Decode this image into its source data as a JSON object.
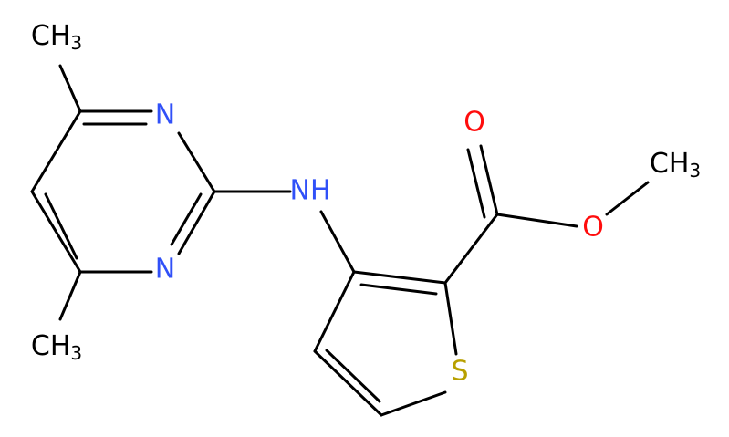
{
  "atoms": [
    {
      "label": "CH",
      "sub": "3"
    },
    {
      "label": "N"
    },
    {
      "label": "N"
    },
    {
      "label": "CH",
      "sub": "3"
    },
    {
      "label": "NH"
    },
    {
      "label": "O"
    },
    {
      "label": "O"
    },
    {
      "label": "CH",
      "sub": "3"
    },
    {
      "label": "S"
    }
  ]
}
